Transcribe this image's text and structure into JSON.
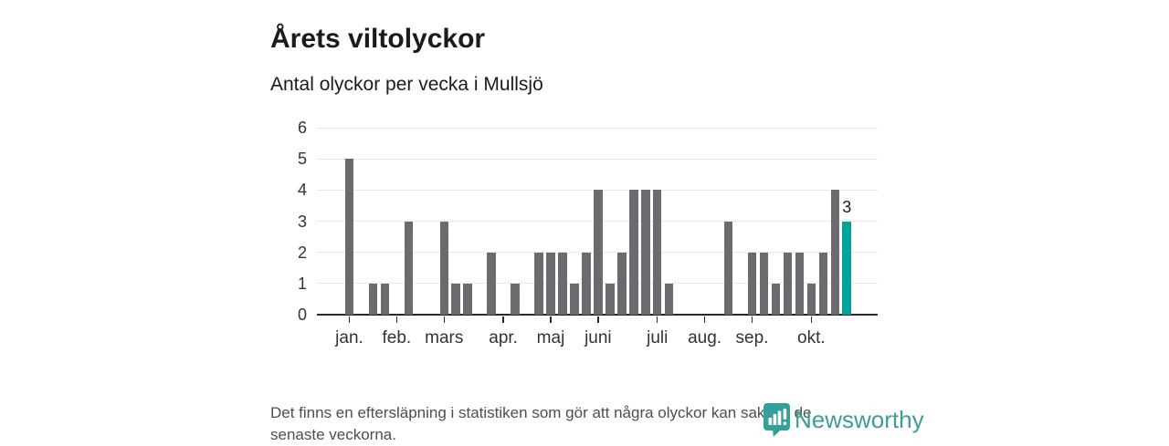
{
  "header": {
    "title": "Årets viltolyckor",
    "subtitle": "Antal olyckor per vecka i Mullsjö"
  },
  "chart_data": {
    "type": "bar",
    "title": "Årets viltolyckor",
    "subtitle": "Antal olyckor per vecka i Mullsjö",
    "x_description": "veckor, januari till oktober (43 veckobarer)",
    "values": [
      5,
      0,
      1,
      1,
      0,
      3,
      0,
      0,
      3,
      1,
      1,
      0,
      2,
      0,
      1,
      0,
      2,
      2,
      2,
      1,
      2,
      4,
      1,
      2,
      4,
      4,
      4,
      1,
      0,
      0,
      0,
      0,
      3,
      0,
      2,
      2,
      1,
      2,
      2,
      1,
      2,
      4,
      3
    ],
    "highlight_index": 42,
    "highlight_label": "3",
    "month_ticks": [
      {
        "label": "jan.",
        "index": 0
      },
      {
        "label": "feb.",
        "index": 4
      },
      {
        "label": "mars",
        "index": 8
      },
      {
        "label": "apr.",
        "index": 13
      },
      {
        "label": "maj",
        "index": 17
      },
      {
        "label": "juni",
        "index": 21
      },
      {
        "label": "juli",
        "index": 26
      },
      {
        "label": "aug.",
        "index": 30
      },
      {
        "label": "sep.",
        "index": 34
      },
      {
        "label": "okt.",
        "index": 39
      }
    ],
    "ylim": [
      0,
      6
    ],
    "yticks": [
      0,
      1,
      2,
      3,
      4,
      5,
      6
    ],
    "grid": true,
    "legend": "none",
    "bar_color": "#6a6a6f",
    "highlight_color": "#00a49c"
  },
  "footer": {
    "line1": "Det finns en eftersläpning i statistiken som gör att några olyckor kan saknas de",
    "line2": "senaste veckorna."
  },
  "branding": {
    "name": "Newsworthy",
    "wordmark_color": "#3e9c96",
    "icon_color": "#35a09a",
    "icon": "newsworthy-pin-icon"
  }
}
